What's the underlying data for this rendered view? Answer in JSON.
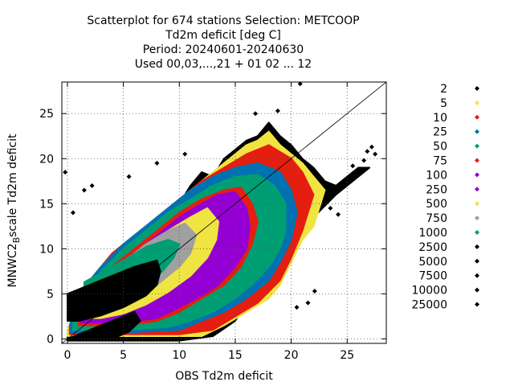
{
  "chart_data": {
    "type": "scatter",
    "title_lines": [
      "Scatterplot for  674 stations Selection: METCOOP",
      "Td2m deficit [deg C]",
      "Period: 20240601-20240630",
      "Used 00,03,...,21 + 01 02 ... 12"
    ],
    "xlabel": "OBS Td2m deficit",
    "ylabel_main": "MNWC2",
    "ylabel_sub": "B",
    "ylabel_tail": "scale Td2m deficit",
    "xlim": [
      -0.5,
      28.5
    ],
    "ylim": [
      -0.5,
      28.5
    ],
    "xticks": [
      0,
      5,
      10,
      15,
      20,
      25
    ],
    "yticks": [
      0,
      5,
      10,
      15,
      20,
      25
    ],
    "grid": true,
    "diagonal": true,
    "legend_position": "right",
    "legend": [
      {
        "label": "2",
        "color": "#000000"
      },
      {
        "label": "5",
        "color": "#f0e442"
      },
      {
        "label": "10",
        "color": "#e51e10"
      },
      {
        "label": "25",
        "color": "#0072b2"
      },
      {
        "label": "50",
        "color": "#009e73"
      },
      {
        "label": "75",
        "color": "#e51e10"
      },
      {
        "label": "100",
        "color": "#9400d3"
      },
      {
        "label": "250",
        "color": "#9400d3"
      },
      {
        "label": "500",
        "color": "#f0e442"
      },
      {
        "label": "750",
        "color": "#a0a0a0"
      },
      {
        "label": "1000",
        "color": "#009e73"
      },
      {
        "label": "2500",
        "color": "#000000"
      },
      {
        "label": "5000",
        "color": "#000000"
      },
      {
        "label": "7500",
        "color": "#000000"
      },
      {
        "label": "10000",
        "color": "#000000"
      },
      {
        "label": "25000",
        "color": "#000000"
      }
    ],
    "density_bands": [
      {
        "color": "#000000",
        "points": [
          [
            0,
            0.3
          ],
          [
            1,
            3
          ],
          [
            2,
            5.5
          ],
          [
            4,
            8
          ],
          [
            6,
            10.5
          ],
          [
            7,
            11.5
          ],
          [
            8,
            13.5
          ],
          [
            10,
            15
          ],
          [
            11,
            17
          ],
          [
            12,
            18.5
          ],
          [
            13,
            18
          ],
          [
            14,
            20
          ],
          [
            15,
            21
          ],
          [
            16,
            22
          ],
          [
            17,
            22.5
          ],
          [
            18,
            24
          ],
          [
            19,
            22.5
          ],
          [
            20,
            21.5
          ],
          [
            21,
            20
          ],
          [
            22,
            19
          ],
          [
            23,
            17.5
          ],
          [
            24,
            17
          ],
          [
            25,
            18
          ],
          [
            26,
            19
          ],
          [
            27,
            19
          ],
          [
            24,
            16
          ],
          [
            22,
            13.5
          ],
          [
            21,
            12
          ],
          [
            20,
            9
          ],
          [
            19,
            7
          ],
          [
            18,
            5.5
          ],
          [
            16,
            4
          ],
          [
            15,
            2
          ],
          [
            13,
            0.3
          ],
          [
            10,
            -0.2
          ],
          [
            5,
            -0.2
          ],
          [
            0,
            -0.2
          ]
        ]
      },
      {
        "color": "#f0e442",
        "points": [
          [
            0,
            1
          ],
          [
            1,
            4
          ],
          [
            2,
            6
          ],
          [
            4,
            9
          ],
          [
            6,
            11
          ],
          [
            8,
            13
          ],
          [
            10,
            15.5
          ],
          [
            12,
            17.5
          ],
          [
            14,
            19.5
          ],
          [
            16,
            21.5
          ],
          [
            17,
            22
          ],
          [
            18,
            23
          ],
          [
            19,
            21.5
          ],
          [
            20,
            20.5
          ],
          [
            21,
            19.5
          ],
          [
            22,
            18
          ],
          [
            23,
            16.5
          ],
          [
            22,
            12.5
          ],
          [
            21,
            11
          ],
          [
            20,
            8.5
          ],
          [
            19,
            6
          ],
          [
            18,
            4.5
          ],
          [
            16,
            3
          ],
          [
            14,
            1.5
          ],
          [
            12,
            0.3
          ],
          [
            5,
            0.3
          ],
          [
            0,
            0.3
          ]
        ]
      },
      {
        "color": "#e51e10",
        "points": [
          [
            0.2,
            1.5
          ],
          [
            1,
            4.5
          ],
          [
            2,
            6.5
          ],
          [
            4,
            9.5
          ],
          [
            6,
            11.5
          ],
          [
            8,
            13.5
          ],
          [
            10,
            15.5
          ],
          [
            12,
            17.5
          ],
          [
            14,
            19
          ],
          [
            16,
            20.5
          ],
          [
            18,
            21.5
          ],
          [
            20,
            20
          ],
          [
            21,
            18.5
          ],
          [
            22,
            16
          ],
          [
            21,
            12
          ],
          [
            20,
            9
          ],
          [
            19,
            6.5
          ],
          [
            17,
            4
          ],
          [
            15,
            2.5
          ],
          [
            13,
            1
          ],
          [
            10,
            0.5
          ],
          [
            5,
            0.5
          ],
          [
            0.2,
            0.5
          ]
        ]
      },
      {
        "color": "#0072b2",
        "points": [
          [
            0.3,
            2
          ],
          [
            1,
            5
          ],
          [
            3,
            8
          ],
          [
            5,
            10.5
          ],
          [
            7,
            12.5
          ],
          [
            9,
            14.5
          ],
          [
            11,
            16.5
          ],
          [
            13,
            18
          ],
          [
            15,
            19
          ],
          [
            17,
            19.5
          ],
          [
            19,
            18.5
          ],
          [
            20,
            16.5
          ],
          [
            20.5,
            14
          ],
          [
            20,
            11
          ],
          [
            19,
            8.5
          ],
          [
            18,
            6.5
          ],
          [
            16,
            4.5
          ],
          [
            14,
            3
          ],
          [
            12,
            2
          ],
          [
            10,
            1
          ],
          [
            5,
            0.7
          ],
          [
            0.3,
            0.7
          ]
        ]
      },
      {
        "color": "#009e73",
        "points": [
          [
            0.5,
            2.5
          ],
          [
            1.5,
            5
          ],
          [
            3,
            7.5
          ],
          [
            5,
            10
          ],
          [
            7,
            12
          ],
          [
            9,
            14
          ],
          [
            11,
            15.5
          ],
          [
            13,
            17
          ],
          [
            15,
            18
          ],
          [
            17,
            18.2
          ],
          [
            18.5,
            17
          ],
          [
            19.5,
            15
          ],
          [
            19.5,
            12
          ],
          [
            19,
            10
          ],
          [
            18,
            8
          ],
          [
            16.5,
            6
          ],
          [
            15,
            4.5
          ],
          [
            13,
            3
          ],
          [
            11,
            2
          ],
          [
            9,
            1.3
          ],
          [
            5,
            1
          ],
          [
            0.5,
            1
          ]
        ]
      },
      {
        "color": "#e51e10",
        "points": [
          [
            1,
            3.5
          ],
          [
            2,
            5.5
          ],
          [
            4,
            8
          ],
          [
            6,
            10
          ],
          [
            8,
            12
          ],
          [
            10,
            14
          ],
          [
            12,
            15.5
          ],
          [
            14,
            16.5
          ],
          [
            15.5,
            16.8
          ],
          [
            16.5,
            15
          ],
          [
            17,
            13
          ],
          [
            16.5,
            10.5
          ],
          [
            15.5,
            8
          ],
          [
            14,
            6
          ],
          [
            12,
            4.5
          ],
          [
            10,
            3
          ],
          [
            8,
            2
          ],
          [
            5,
            1.5
          ],
          [
            1,
            1.5
          ]
        ]
      },
      {
        "color": "#9400d3",
        "points": [
          [
            1.2,
            4
          ],
          [
            2.5,
            5.5
          ],
          [
            4,
            7.5
          ],
          [
            6,
            9.5
          ],
          [
            8,
            11.5
          ],
          [
            10,
            13.5
          ],
          [
            12,
            15
          ],
          [
            13.5,
            16
          ],
          [
            15,
            16.3
          ],
          [
            16,
            14.5
          ],
          [
            16.3,
            12.5
          ],
          [
            16,
            10
          ],
          [
            15,
            8
          ],
          [
            13.5,
            6
          ],
          [
            12,
            4.8
          ],
          [
            10,
            3.5
          ],
          [
            8,
            2.3
          ],
          [
            5,
            1.8
          ],
          [
            1.2,
            1.8
          ]
        ]
      },
      {
        "color": "#f0e442",
        "points": [
          [
            1.3,
            5
          ],
          [
            3,
            6.5
          ],
          [
            5,
            8
          ],
          [
            7,
            10
          ],
          [
            9,
            12
          ],
          [
            11,
            13.5
          ],
          [
            12.5,
            14.5
          ],
          [
            13.5,
            13
          ],
          [
            13.3,
            11
          ],
          [
            12.5,
            9
          ],
          [
            11,
            7
          ],
          [
            9,
            5.2
          ],
          [
            7,
            3.8
          ],
          [
            5,
            2.8
          ],
          [
            3,
            2.3
          ],
          [
            1.3,
            2.3
          ]
        ]
      },
      {
        "color": "#a0a0a0",
        "points": [
          [
            1.5,
            6
          ],
          [
            3,
            7
          ],
          [
            5,
            8.5
          ],
          [
            7,
            10.5
          ],
          [
            9,
            12
          ],
          [
            10.5,
            12.8
          ],
          [
            11.5,
            11.5
          ],
          [
            11,
            9.5
          ],
          [
            10,
            8
          ],
          [
            8.5,
            6.5
          ],
          [
            7,
            5
          ],
          [
            5,
            3.8
          ],
          [
            3,
            3
          ],
          [
            1.5,
            3
          ]
        ]
      },
      {
        "color": "#009e73",
        "points": [
          [
            1.5,
            6.3
          ],
          [
            3,
            7.3
          ],
          [
            5,
            8.7
          ],
          [
            7,
            10.2
          ],
          [
            9,
            11
          ],
          [
            10,
            10.5
          ],
          [
            9.5,
            9
          ],
          [
            8.5,
            7.5
          ],
          [
            7,
            6
          ],
          [
            5,
            4.5
          ],
          [
            3,
            3.5
          ],
          [
            1.5,
            3.2
          ]
        ]
      },
      {
        "color": "#000000",
        "points": [
          [
            0,
            5
          ],
          [
            2,
            6
          ],
          [
            4,
            7
          ],
          [
            6,
            8
          ],
          [
            8,
            8.7
          ],
          [
            8.3,
            7.5
          ],
          [
            8,
            6
          ],
          [
            7,
            4.8
          ],
          [
            5,
            3.5
          ],
          [
            3,
            2.6
          ],
          [
            1,
            2
          ],
          [
            0,
            2
          ]
        ]
      },
      {
        "color": "#000000",
        "points": [
          [
            0,
            0
          ],
          [
            2,
            1
          ],
          [
            4,
            2
          ],
          [
            6,
            3
          ],
          [
            6.5,
            2
          ],
          [
            5.5,
            0.8
          ],
          [
            4,
            0
          ],
          [
            0,
            0
          ]
        ]
      }
    ],
    "scatter_points": [
      {
        "x": 20.8,
        "y": 28.3,
        "color": "#000000"
      },
      {
        "x": 27.2,
        "y": 21.3,
        "color": "#000000"
      },
      {
        "x": 26.8,
        "y": 20.8,
        "color": "#000000"
      },
      {
        "x": 27.5,
        "y": 20.5,
        "color": "#000000"
      },
      {
        "x": 25.5,
        "y": 19.2,
        "color": "#000000"
      },
      {
        "x": 26.5,
        "y": 19.8,
        "color": "#000000"
      },
      {
        "x": 24.8,
        "y": 17.5,
        "color": "#000000"
      },
      {
        "x": 23.5,
        "y": 14.5,
        "color": "#000000"
      },
      {
        "x": 23.2,
        "y": 15.3,
        "color": "#000000"
      },
      {
        "x": 24.2,
        "y": 13.8,
        "color": "#000000"
      },
      {
        "x": 22.1,
        "y": 5.3,
        "color": "#000000"
      },
      {
        "x": 21.5,
        "y": 4.0,
        "color": "#000000"
      },
      {
        "x": 20.5,
        "y": 3.5,
        "color": "#000000"
      },
      {
        "x": -0.2,
        "y": 18.5,
        "color": "#000000"
      },
      {
        "x": 0.5,
        "y": 14.0,
        "color": "#000000"
      },
      {
        "x": 1.5,
        "y": 16.5,
        "color": "#000000"
      },
      {
        "x": 2.2,
        "y": 17.0,
        "color": "#000000"
      },
      {
        "x": 16.8,
        "y": 25.0,
        "color": "#000000"
      },
      {
        "x": 18.8,
        "y": 25.3,
        "color": "#000000"
      },
      {
        "x": 10.5,
        "y": 20.5,
        "color": "#000000"
      },
      {
        "x": 8.0,
        "y": 19.5,
        "color": "#000000"
      },
      {
        "x": 5.5,
        "y": 18.0,
        "color": "#000000"
      }
    ]
  }
}
